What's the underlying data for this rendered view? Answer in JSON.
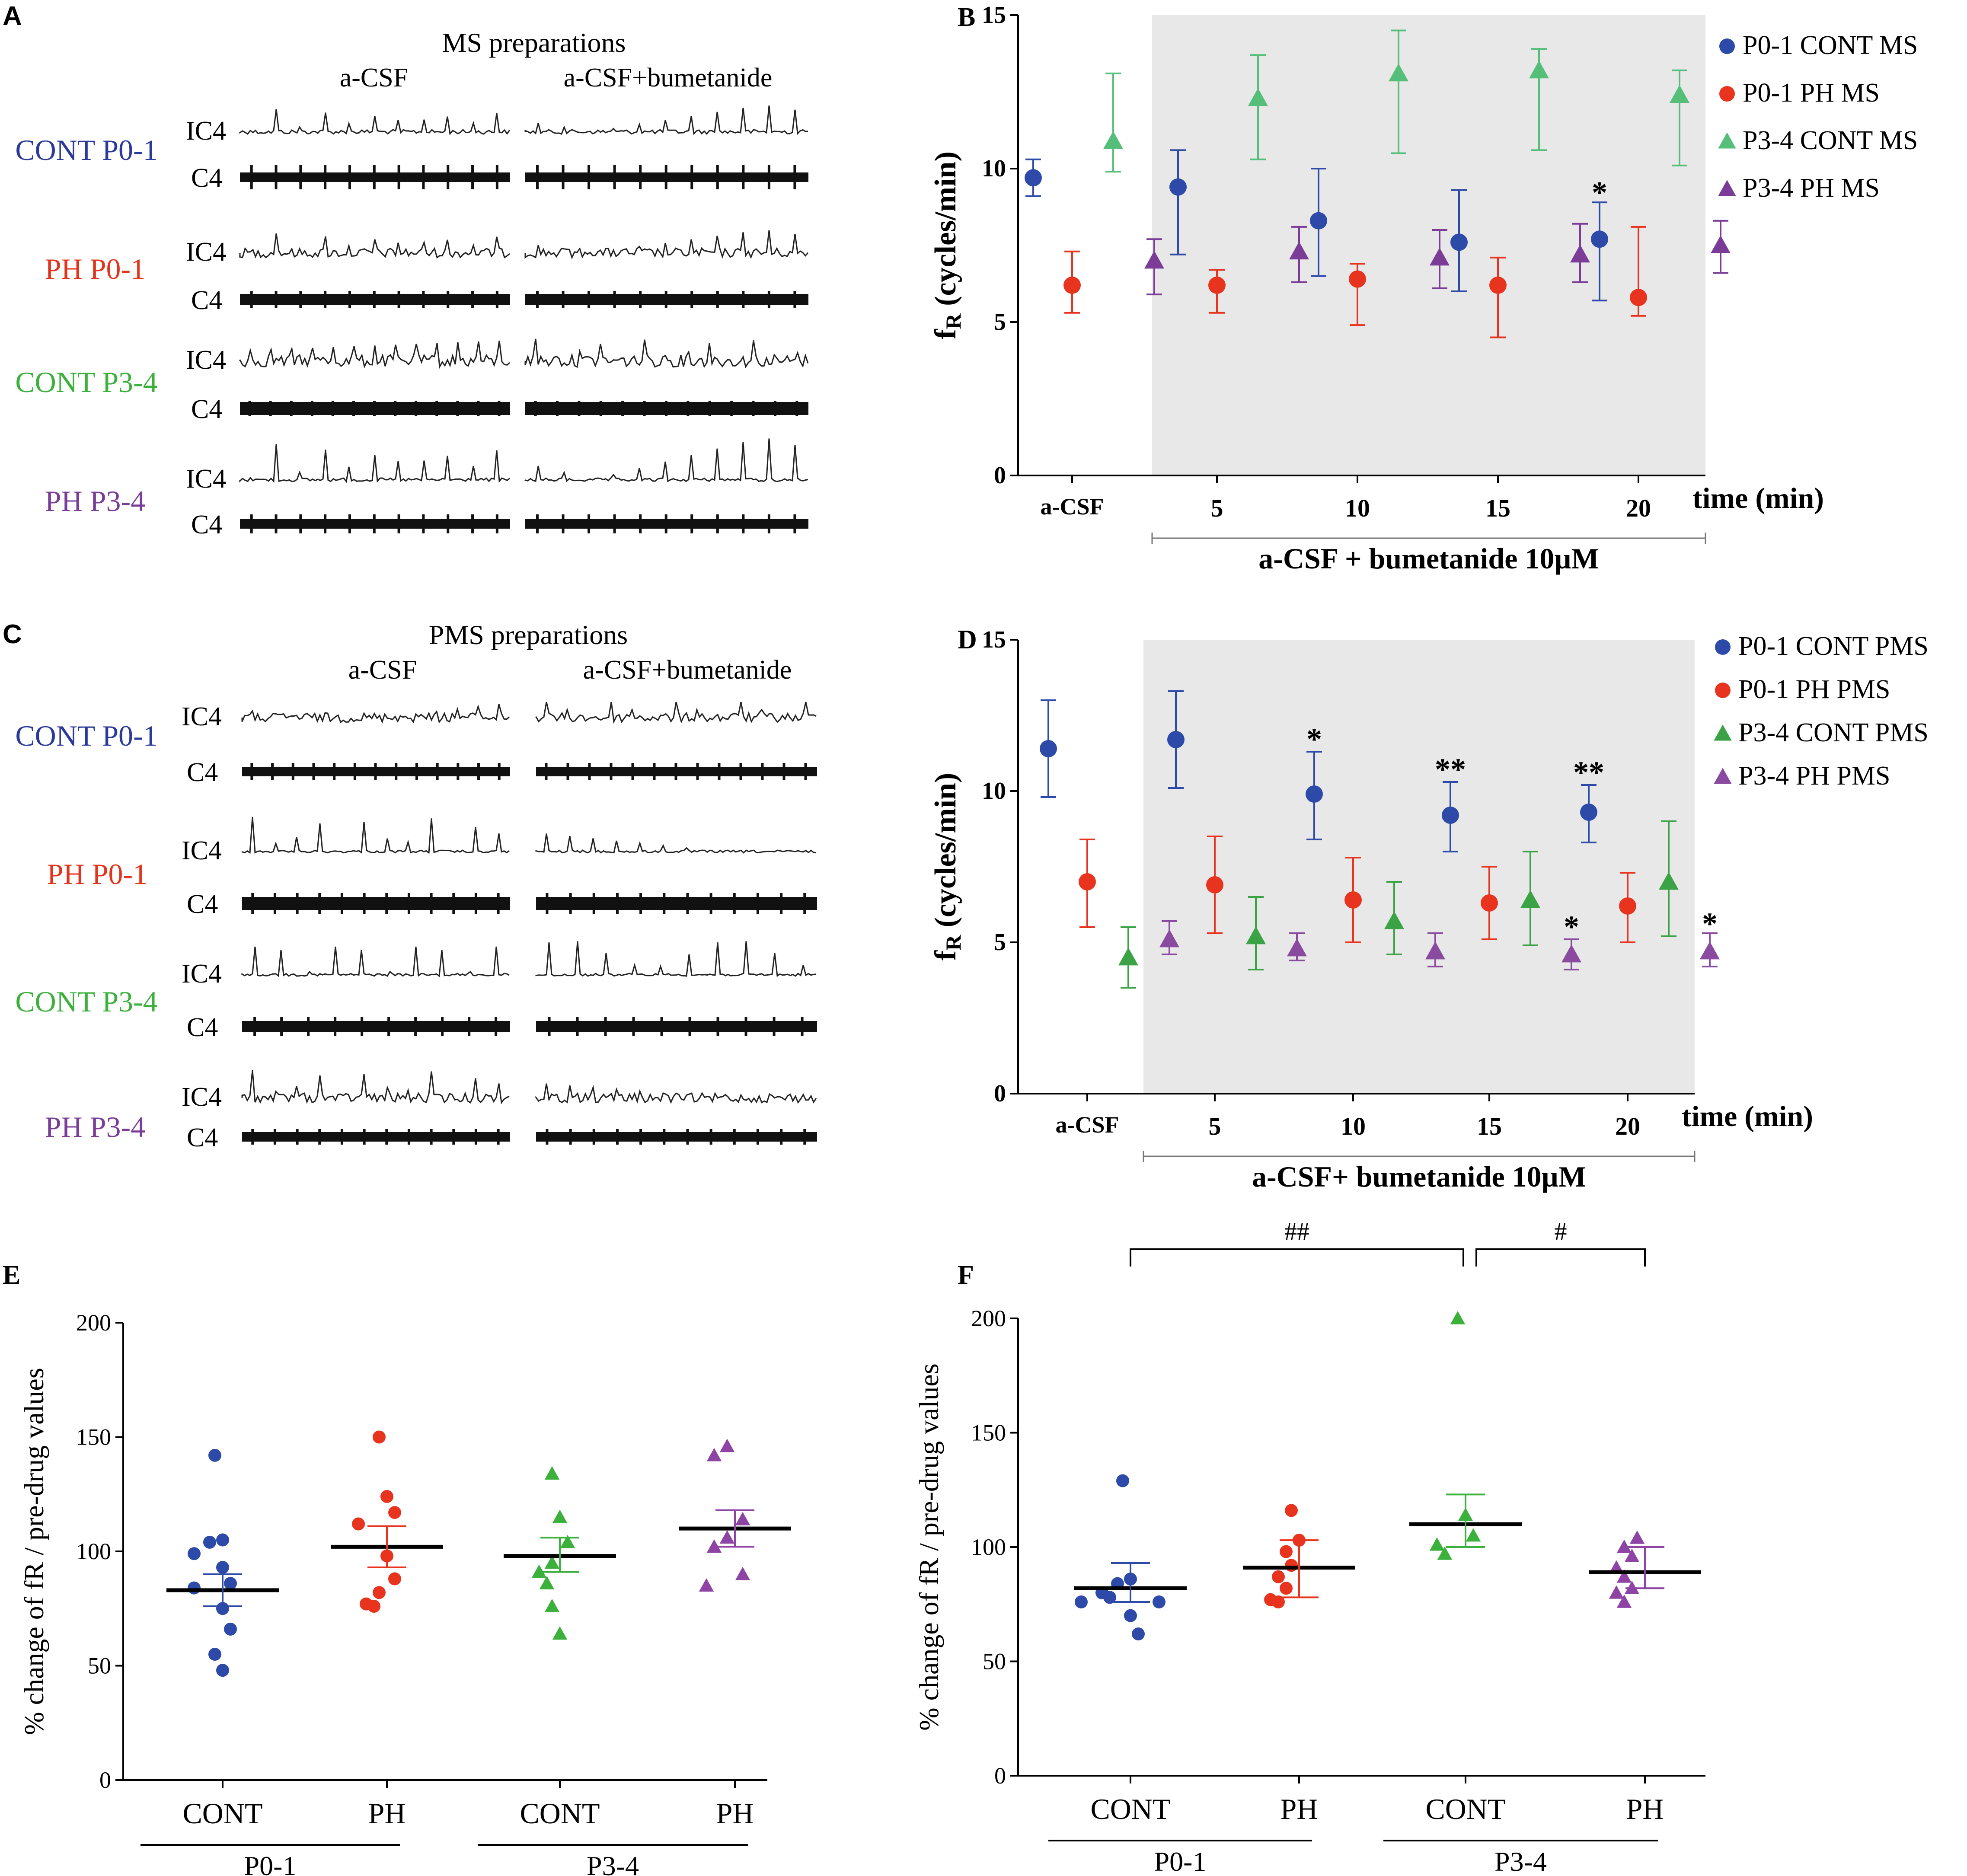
{
  "panels": {
    "A": {
      "letter": "A",
      "title": "MS preparations",
      "cond_left": "a-CSF",
      "cond_right": "a-CSF+bumetanide",
      "groups": [
        {
          "label": "CONT P0-1",
          "color": "#2b3a9a"
        },
        {
          "label": "PH P0-1",
          "color": "#e2341d"
        },
        {
          "label": "CONT P3-4",
          "color": "#3bb03b"
        },
        {
          "label": "PH P3-4",
          "color": "#7a3c97"
        }
      ],
      "trace_labels": {
        "ic4": "IC4",
        "c4": "C4"
      }
    },
    "C": {
      "letter": "C",
      "title": "PMS preparations",
      "cond_left": "a-CSF",
      "cond_right": "a-CSF+bumetanide",
      "groups": [
        {
          "label": "CONT P0-1",
          "color": "#2b3a9a"
        },
        {
          "label": "PH P0-1",
          "color": "#e2341d"
        },
        {
          "label": "CONT P3-4",
          "color": "#3bb03b"
        },
        {
          "label": "PH P3-4",
          "color": "#7a3c97"
        }
      ],
      "trace_labels": {
        "ic4": "IC4",
        "c4": "C4"
      }
    },
    "E": {
      "letter": "E"
    },
    "F": {
      "letter": "F"
    }
  },
  "chart_data": [
    {
      "id": "B",
      "letter": "B",
      "type": "scatter",
      "ylabel_main": "f",
      "ylabel_sub": "R",
      "ylabel_rest": " (cycles/min)",
      "xlabel": "time (min)",
      "ylim": [
        0,
        15
      ],
      "yticks": [
        0,
        5,
        10,
        15
      ],
      "xtick_labels": [
        "a-CSF",
        "5",
        "10",
        "15",
        "20"
      ],
      "shade_label": "a-CSF + bumetanide 10µM",
      "series": [
        {
          "name": "P0-1 CONT MS",
          "color": "#2d4aa8",
          "marker": "circle",
          "means": [
            9.7,
            9.4,
            8.3,
            7.6,
            7.7
          ],
          "lo": [
            9.1,
            7.2,
            6.5,
            6.0,
            5.7
          ],
          "hi": [
            10.3,
            10.6,
            10.0,
            9.3,
            8.9
          ]
        },
        {
          "name": "P0-1 PH MS",
          "color": "#e8341f",
          "marker": "circle",
          "means": [
            6.2,
            6.2,
            6.4,
            6.2,
            5.8
          ],
          "lo": [
            5.3,
            5.3,
            4.9,
            4.5,
            5.2
          ],
          "hi": [
            7.3,
            6.7,
            6.9,
            7.1,
            8.1
          ]
        },
        {
          "name": "P3-4 CONT MS",
          "color": "#55bf7a",
          "marker": "triangle",
          "means": [
            10.9,
            12.3,
            13.1,
            13.2,
            12.4
          ],
          "lo": [
            9.9,
            10.3,
            10.5,
            10.6,
            10.1
          ],
          "hi": [
            13.1,
            13.7,
            14.5,
            13.9,
            13.2
          ]
        },
        {
          "name": "P3-4 PH MS",
          "color": "#7b3c98",
          "marker": "triangle",
          "means": [
            7.0,
            7.3,
            7.1,
            7.2,
            7.5
          ],
          "lo": [
            5.9,
            6.3,
            6.1,
            6.3,
            6.6
          ],
          "hi": [
            7.7,
            8.1,
            8.0,
            8.2,
            8.3
          ]
        }
      ],
      "annotations": [
        {
          "text": "*",
          "series": 0,
          "point": 4,
          "y": 9.3
        }
      ]
    },
    {
      "id": "D",
      "letter": "D",
      "type": "scatter",
      "ylabel_main": "f",
      "ylabel_sub": "R",
      "ylabel_rest": " (cycles/min)",
      "xlabel": "time (min)",
      "ylim": [
        0,
        15
      ],
      "yticks": [
        0,
        5,
        10,
        15
      ],
      "xtick_labels": [
        "a-CSF",
        "5",
        "10",
        "15",
        "20"
      ],
      "shade_label": "a-CSF+ bumetanide 10µM",
      "series": [
        {
          "name": "P0-1 CONT PMS",
          "color": "#2d4aa8",
          "marker": "circle",
          "means": [
            11.4,
            11.7,
            9.9,
            9.2,
            9.3
          ],
          "lo": [
            9.8,
            10.1,
            8.4,
            8.0,
            8.3
          ],
          "hi": [
            13.0,
            13.3,
            11.3,
            10.3,
            10.2
          ]
        },
        {
          "name": "P0-1 PH PMS",
          "color": "#e8341f",
          "marker": "circle",
          "means": [
            7.0,
            6.9,
            6.4,
            6.3,
            6.2
          ],
          "lo": [
            5.5,
            5.3,
            5.0,
            5.1,
            5.0
          ],
          "hi": [
            8.4,
            8.5,
            7.8,
            7.5,
            7.3
          ]
        },
        {
          "name": "P3-4 CONT PMS",
          "color": "#3ba345",
          "marker": "triangle",
          "means": [
            4.5,
            5.2,
            5.7,
            6.4,
            7.0
          ],
          "lo": [
            3.5,
            4.1,
            4.6,
            4.9,
            5.2
          ],
          "hi": [
            5.5,
            6.5,
            7.0,
            8.0,
            9.0
          ]
        },
        {
          "name": "P3-4 PH PMS",
          "color": "#8a4a9f",
          "marker": "triangle",
          "means": [
            5.1,
            4.8,
            4.7,
            4.6,
            4.7
          ],
          "lo": [
            4.6,
            4.4,
            4.2,
            4.1,
            4.2
          ],
          "hi": [
            5.7,
            5.3,
            5.3,
            5.1,
            5.3
          ]
        }
      ],
      "annotations": [
        {
          "text": "*",
          "series": 0,
          "point": 2,
          "y": 11.8
        },
        {
          "text": "**",
          "series": 0,
          "point": 3,
          "y": 10.8
        },
        {
          "text": "**",
          "series": 0,
          "point": 4,
          "y": 10.7
        },
        {
          "text": "*",
          "series": 3,
          "point": 3,
          "y": 5.6
        },
        {
          "text": "*",
          "series": 3,
          "point": 4,
          "y": 5.7
        }
      ]
    },
    {
      "id": "E",
      "letter": "E",
      "type": "scatter",
      "ylabel": "% change of fR / pre-drug values",
      "ylim": [
        0,
        200
      ],
      "yticks": [
        0,
        50,
        100,
        150,
        200
      ],
      "group_labels": [
        "P0-1",
        "P3-4"
      ],
      "categories": [
        {
          "label": "CONT",
          "color": "#2d4aa8",
          "marker": "circle",
          "mean": 83,
          "sem_lo": 76,
          "sem_hi": 90,
          "values": [
            142,
            105,
            104,
            99,
            93,
            86,
            84,
            75,
            66,
            55,
            48
          ]
        },
        {
          "label": "PH",
          "color": "#e8341f",
          "marker": "circle",
          "mean": 102,
          "sem_lo": 93,
          "sem_hi": 111,
          "values": [
            150,
            124,
            117,
            112,
            98,
            88,
            82,
            77,
            76
          ]
        },
        {
          "label": "CONT",
          "color": "#3bb03b",
          "marker": "triangle",
          "mean": 98,
          "sem_lo": 91,
          "sem_hi": 106,
          "values": [
            134,
            115,
            104,
            95,
            91,
            86,
            76,
            64
          ]
        },
        {
          "label": "PH",
          "color": "#8e44a4",
          "marker": "triangle",
          "mean": 110,
          "sem_lo": 102,
          "sem_hi": 118,
          "values": [
            146,
            142,
            114,
            106,
            102,
            90,
            85
          ]
        }
      ]
    },
    {
      "id": "F",
      "letter": "F",
      "type": "scatter",
      "ylabel": "% change of fR / pre-drug values",
      "ylim": [
        0,
        200
      ],
      "yticks": [
        0,
        50,
        100,
        150,
        200
      ],
      "group_labels": [
        "P0-1",
        "P3-4"
      ],
      "categories": [
        {
          "label": "CONT",
          "color": "#2d4aa8",
          "marker": "circle",
          "mean": 82,
          "sem_lo": 76,
          "sem_hi": 93,
          "values": [
            129,
            86,
            84,
            80,
            78,
            76,
            76,
            70,
            62
          ]
        },
        {
          "label": "PH",
          "color": "#e8341f",
          "marker": "circle",
          "mean": 91,
          "sem_lo": 78,
          "sem_hi": 103,
          "values": [
            116,
            103,
            98,
            92,
            87,
            82,
            77,
            76
          ]
        },
        {
          "label": "CONT",
          "color": "#3bb03b",
          "marker": "triangle",
          "mean": 110,
          "sem_lo": 100,
          "sem_hi": 123,
          "values": [
            200,
            114,
            105,
            101,
            97
          ]
        },
        {
          "label": "PH",
          "color": "#8e44a4",
          "marker": "triangle",
          "mean": 89,
          "sem_lo": 82,
          "sem_hi": 100,
          "values": [
            104,
            100,
            96,
            91,
            87,
            82,
            80,
            76
          ]
        }
      ],
      "brackets": [
        {
          "text": "##",
          "from": 0,
          "to": 2
        },
        {
          "text": "#",
          "from": 2,
          "to": 3
        }
      ]
    }
  ]
}
